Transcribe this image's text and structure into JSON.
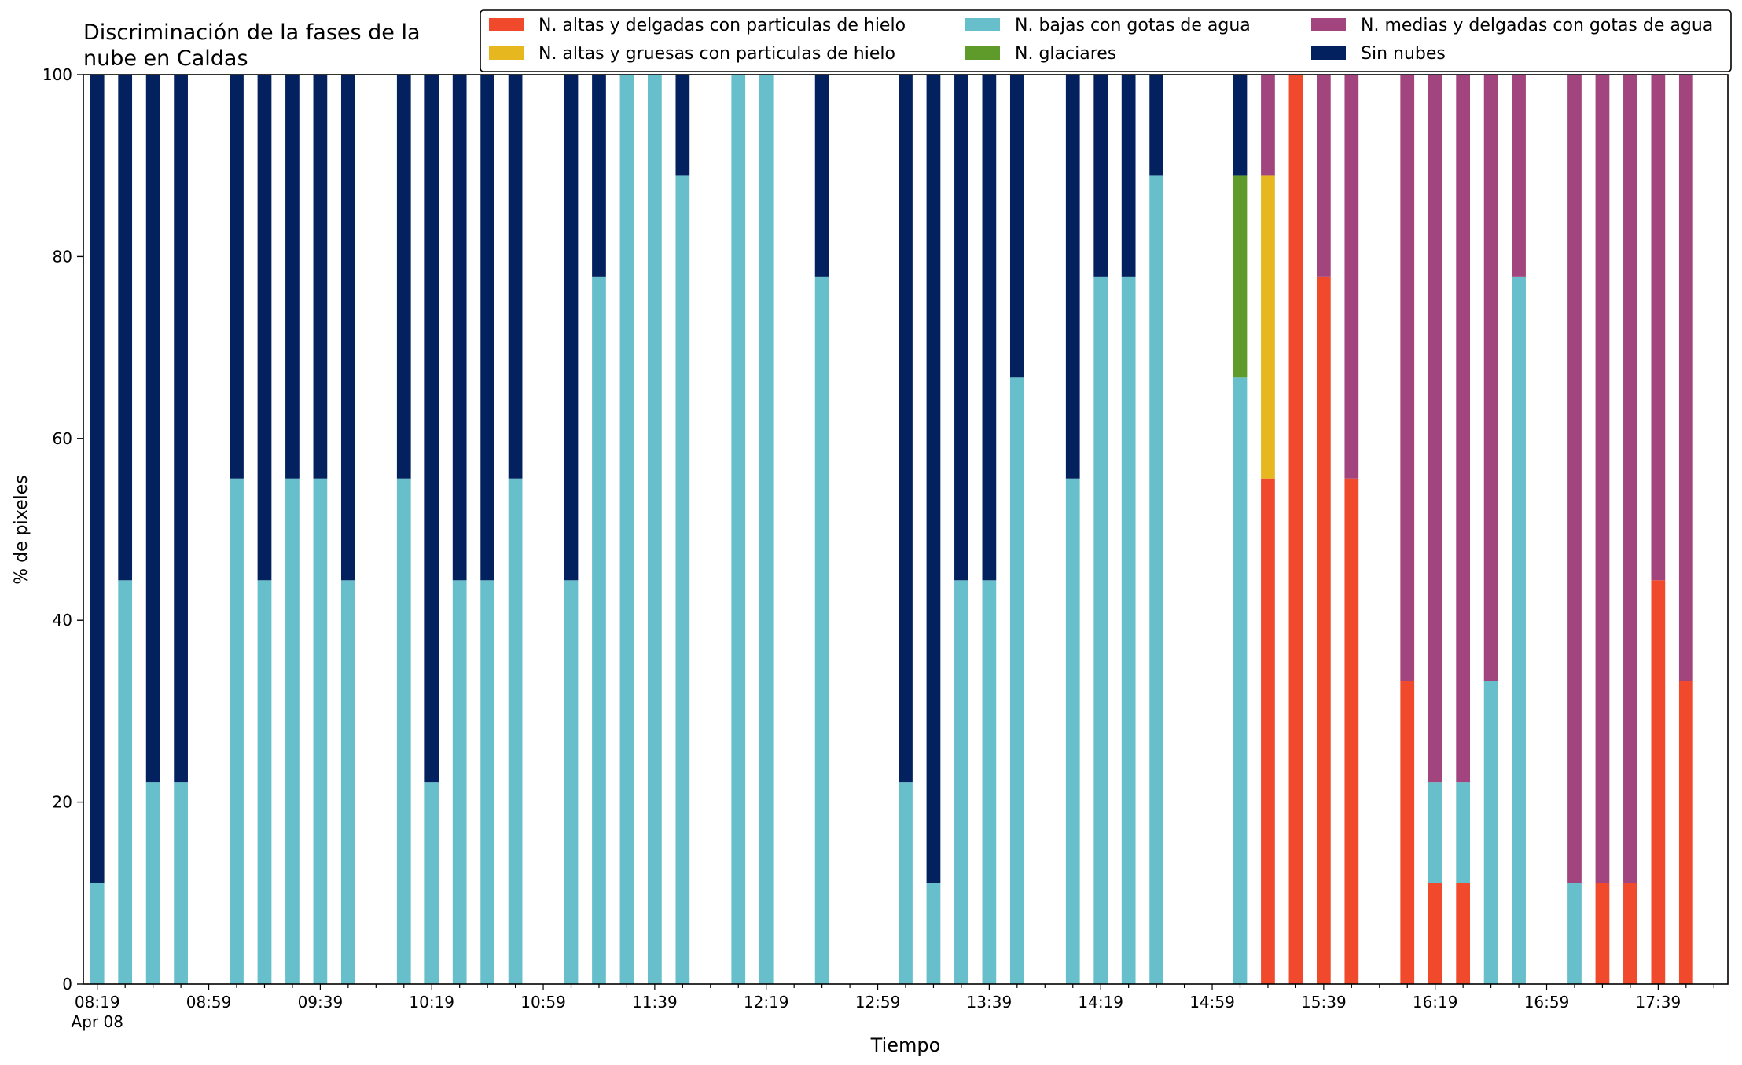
{
  "chart_data": {
    "type": "bar",
    "stacked": true,
    "title_lines": [
      "Discriminación de la fases de la",
      "nube en Caldas"
    ],
    "xlabel": "Tiempo",
    "ylabel": "% de pixeles",
    "ylim": [
      0,
      100
    ],
    "yticks": [
      0,
      20,
      40,
      60,
      80,
      100
    ],
    "x_start_label": "08:19",
    "x_end_label": "17:59",
    "x_step_minutes": 10,
    "x_label_every_minutes": 40,
    "xtick_labels": [
      "08:19",
      "08:59",
      "09:39",
      "10:19",
      "10:59",
      "11:39",
      "12:19",
      "12:59",
      "13:39",
      "14:19",
      "14:59",
      "15:39",
      "16:19",
      "16:59",
      "17:39"
    ],
    "x_date_label": "Apr 08",
    "legend_position": "top-right",
    "series": [
      {
        "key": "altas_delgadas",
        "name": "N. altas y delgadas con particulas de hielo",
        "color": "#f0492c"
      },
      {
        "key": "altas_gruesas",
        "name": "N. altas y gruesas con particulas de hielo",
        "color": "#e6b71e"
      },
      {
        "key": "bajas",
        "name": "N. bajas con gotas de agua",
        "color": "#66bfcb"
      },
      {
        "key": "glaciares",
        "name": "N. glaciares",
        "color": "#5e9b2a"
      },
      {
        "key": "medias",
        "name": "N. medias y delgadas con gotas de agua",
        "color": "#a2457e"
      },
      {
        "key": "sin_nubes",
        "name": "Sin nubes",
        "color": "#03215f"
      }
    ],
    "stack_order": [
      "altas_delgadas",
      "altas_gruesas",
      "bajas",
      "glaciares",
      "medias",
      "sin_nubes"
    ],
    "bars": [
      {
        "time": "08:19",
        "bajas": 11.1,
        "sin_nubes": 88.9
      },
      {
        "time": "08:29",
        "bajas": 44.4,
        "sin_nubes": 55.6
      },
      {
        "time": "08:39",
        "bajas": 22.2,
        "sin_nubes": 77.8
      },
      {
        "time": "08:49",
        "bajas": 22.2,
        "sin_nubes": 77.8
      },
      {
        "time": "09:09",
        "bajas": 55.6,
        "sin_nubes": 44.4
      },
      {
        "time": "09:19",
        "bajas": 44.4,
        "sin_nubes": 55.6
      },
      {
        "time": "09:29",
        "bajas": 55.6,
        "sin_nubes": 44.4
      },
      {
        "time": "09:39",
        "bajas": 55.6,
        "sin_nubes": 44.4
      },
      {
        "time": "09:49",
        "bajas": 44.4,
        "sin_nubes": 55.6
      },
      {
        "time": "10:09",
        "bajas": 55.6,
        "sin_nubes": 44.4
      },
      {
        "time": "10:19",
        "bajas": 22.2,
        "sin_nubes": 77.8
      },
      {
        "time": "10:29",
        "bajas": 44.4,
        "sin_nubes": 55.6
      },
      {
        "time": "10:39",
        "bajas": 44.4,
        "sin_nubes": 55.6
      },
      {
        "time": "10:49",
        "bajas": 55.6,
        "sin_nubes": 44.4
      },
      {
        "time": "11:09",
        "bajas": 44.4,
        "sin_nubes": 55.6
      },
      {
        "time": "11:19",
        "bajas": 77.8,
        "sin_nubes": 22.2
      },
      {
        "time": "11:29",
        "bajas": 100
      },
      {
        "time": "11:39",
        "bajas": 100
      },
      {
        "time": "11:49",
        "bajas": 88.9,
        "sin_nubes": 11.1
      },
      {
        "time": "12:09",
        "bajas": 100
      },
      {
        "time": "12:19",
        "bajas": 100
      },
      {
        "time": "12:39",
        "bajas": 77.8,
        "sin_nubes": 22.2
      },
      {
        "time": "13:09",
        "bajas": 22.2,
        "sin_nubes": 77.8
      },
      {
        "time": "13:19",
        "bajas": 11.1,
        "sin_nubes": 88.9
      },
      {
        "time": "13:29",
        "bajas": 44.4,
        "sin_nubes": 55.6
      },
      {
        "time": "13:39",
        "bajas": 44.4,
        "sin_nubes": 55.6
      },
      {
        "time": "13:49",
        "bajas": 66.7,
        "sin_nubes": 33.3
      },
      {
        "time": "14:09",
        "bajas": 55.6,
        "sin_nubes": 44.4
      },
      {
        "time": "14:19",
        "bajas": 77.8,
        "sin_nubes": 22.2
      },
      {
        "time": "14:29",
        "bajas": 77.8,
        "sin_nubes": 22.2
      },
      {
        "time": "14:39",
        "bajas": 88.9,
        "sin_nubes": 11.1
      },
      {
        "time": "15:09",
        "bajas": 66.7,
        "glaciares": 22.2,
        "sin_nubes": 11.1
      },
      {
        "time": "15:19",
        "altas_delgadas": 55.6,
        "altas_gruesas": 33.3,
        "medias": 11.1
      },
      {
        "time": "15:29",
        "altas_delgadas": 100
      },
      {
        "time": "15:39",
        "altas_delgadas": 77.8,
        "medias": 22.2
      },
      {
        "time": "15:49",
        "altas_delgadas": 55.6,
        "medias": 44.4
      },
      {
        "time": "16:09",
        "altas_delgadas": 33.3,
        "medias": 66.7
      },
      {
        "time": "16:19",
        "altas_delgadas": 11.1,
        "bajas": 11.1,
        "medias": 77.8
      },
      {
        "time": "16:29",
        "altas_delgadas": 11.1,
        "bajas": 11.1,
        "medias": 77.8
      },
      {
        "time": "16:39",
        "bajas": 33.3,
        "medias": 66.7
      },
      {
        "time": "16:49",
        "bajas": 77.8,
        "medias": 22.2
      },
      {
        "time": "17:09",
        "bajas": 11.1,
        "medias": 88.9
      },
      {
        "time": "17:19",
        "altas_delgadas": 11.1,
        "medias": 88.9
      },
      {
        "time": "17:29",
        "altas_delgadas": 11.1,
        "medias": 88.9
      },
      {
        "time": "17:39",
        "altas_delgadas": 44.4,
        "medias": 55.6
      },
      {
        "time": "17:49",
        "altas_delgadas": 33.3,
        "medias": 66.7
      }
    ]
  }
}
